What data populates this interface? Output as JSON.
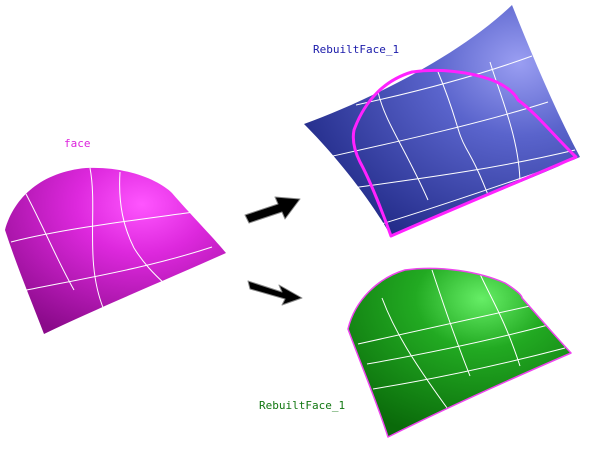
{
  "labels": {
    "original": "face",
    "rebuilt_top": "RebuiltFace_1",
    "rebuilt_bottom": "RebuiltFace_1"
  },
  "colors": {
    "background": "#ffffff",
    "original_face": "#cc22cc",
    "original_label": "#dd22dd",
    "rebuilt_top_face": "#2a3596",
    "rebuilt_top_label": "#1a1aaa",
    "rebuilt_top_boundary": "#ff22ff",
    "rebuilt_bottom_face": "#119911",
    "rebuilt_bottom_label": "#117711",
    "rebuilt_bottom_boundary": "#ee44ee",
    "iso_lines": "#ffffff",
    "arrows": "#000000"
  },
  "icons": {
    "arrow_up": "arrow-right-up-icon",
    "arrow_down": "arrow-right-down-icon"
  }
}
